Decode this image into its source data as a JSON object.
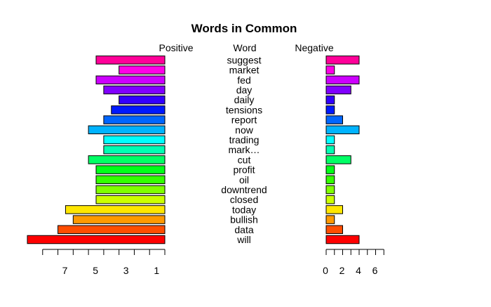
{
  "chart_data": {
    "type": "bar",
    "title": "Words in Common",
    "headers": {
      "left": "Positive",
      "middle": "Word",
      "right": "Negative"
    },
    "words": [
      "will",
      "data",
      "bullish",
      "today",
      "closed",
      "downtrend",
      "oil",
      "profit",
      "cut",
      "mark…",
      "trading",
      "now",
      "report",
      "tensions",
      "daily",
      "day",
      "fed",
      "market",
      "suggest"
    ],
    "positive": [
      9,
      7,
      6,
      6.5,
      4.5,
      4.5,
      4.5,
      4.5,
      5,
      4,
      4,
      5,
      4,
      3.5,
      3,
      4,
      4.5,
      3,
      4.5
    ],
    "negative": [
      4,
      2,
      1,
      2,
      1,
      1,
      1,
      1,
      3,
      1,
      1,
      4,
      2,
      1,
      1,
      3,
      4,
      1,
      4
    ],
    "colors": [
      "#FF0000",
      "#FF4D00",
      "#FF9900",
      "#FFE600",
      "#CCFF00",
      "#80FF00",
      "#33FF00",
      "#00FF19",
      "#00FF66",
      "#00FFB3",
      "#00FFFF",
      "#00B3FF",
      "#0066FF",
      "#0019FF",
      "#3300FF",
      "#8000FF",
      "#CC00FF",
      "#FF00E6",
      "#FF0099"
    ],
    "left_axis": {
      "ticks": [
        7,
        5,
        3,
        1
      ],
      "range": [
        0,
        9
      ]
    },
    "right_axis": {
      "ticks": [
        0,
        2,
        4,
        6
      ],
      "range": [
        0,
        7
      ]
    }
  }
}
